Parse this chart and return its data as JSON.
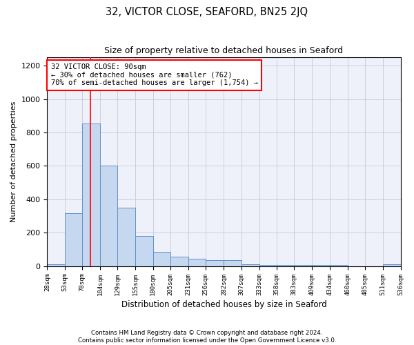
{
  "title": "32, VICTOR CLOSE, SEAFORD, BN25 2JQ",
  "subtitle": "Size of property relative to detached houses in Seaford",
  "xlabel": "Distribution of detached houses by size in Seaford",
  "ylabel": "Number of detached properties",
  "footer_line1": "Contains HM Land Registry data © Crown copyright and database right 2024.",
  "footer_line2": "Contains public sector information licensed under the Open Government Licence v3.0.",
  "annotation_line1": "32 VICTOR CLOSE: 90sqm",
  "annotation_line2": "← 30% of detached houses are smaller (762)",
  "annotation_line3": "70% of semi-detached houses are larger (1,754) →",
  "bar_color": "#c5d8f0",
  "bar_edge_color": "#6090c8",
  "property_line_x": 90,
  "bin_edges": [
    28,
    53,
    78,
    104,
    129,
    155,
    180,
    205,
    231,
    256,
    282,
    307,
    333,
    358,
    383,
    409,
    434,
    460,
    485,
    511,
    536
  ],
  "bar_heights": [
    12,
    315,
    855,
    600,
    350,
    180,
    85,
    55,
    45,
    35,
    35,
    10,
    5,
    5,
    5,
    5,
    5,
    0,
    0,
    12
  ],
  "ylim": [
    0,
    1250
  ],
  "yticks": [
    0,
    200,
    400,
    600,
    800,
    1000,
    1200
  ],
  "grid_color": "#c8c8d8",
  "background_color": "#eef1fa",
  "annotation_box_edge_color": "red",
  "property_line_color": "red"
}
